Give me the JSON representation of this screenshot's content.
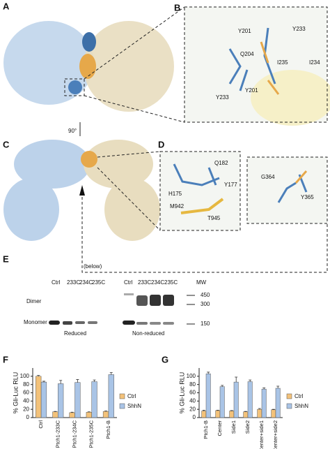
{
  "panels": {
    "A": {
      "label": "A"
    },
    "B": {
      "label": "B",
      "residues": [
        "Y201",
        "Y233",
        "Q204",
        "I235",
        "I234",
        "Y201",
        "Y233"
      ]
    },
    "C": {
      "label": "C",
      "rotation": "90°",
      "note": "(below)"
    },
    "D": {
      "label": "D",
      "residues": [
        "Q182",
        "H175",
        "Y177",
        "M942",
        "T945"
      ],
      "side_residues": [
        "G364",
        "Y365"
      ]
    },
    "E": {
      "label": "E",
      "lanes_reduced": [
        "Ctrl",
        "233C",
        "234C",
        "235C"
      ],
      "lanes_nonreduced": [
        "Ctrl",
        "233C",
        "234C",
        "235C"
      ],
      "mw_title": "MW",
      "mw": [
        450,
        300,
        150
      ],
      "dimer": "Dimer",
      "monomer": "Monomer",
      "reduced": "Reduced",
      "nonreduced": "Non-reduced"
    },
    "F": {
      "label": "F"
    },
    "G": {
      "label": "G"
    }
  },
  "chart_data": [
    {
      "type": "bar",
      "y_label": "% Gli-Luc RLU",
      "categories": [
        "Ctrl",
        "Ptch1-233C",
        "Ptch1-234C",
        "Ptch1-235C",
        "Ptch1-B"
      ],
      "series": [
        {
          "name": "Ctrl",
          "color": "#f3c27a",
          "values": [
            100,
            14,
            12,
            13,
            15
          ],
          "errors": [
            2,
            1,
            1,
            1,
            1
          ]
        },
        {
          "name": "ShhN",
          "color": "#a9c4e6",
          "values": [
            86,
            82,
            85,
            87,
            104
          ],
          "errors": [
            2,
            8,
            7,
            4,
            5
          ]
        }
      ],
      "ylim": [
        0,
        120
      ],
      "yticks": [
        0,
        20,
        40,
        60,
        80,
        100
      ]
    },
    {
      "type": "bar",
      "y_label": "% Gli-Luc RLU",
      "categories": [
        "Ptch1-B",
        "Center",
        "Side1",
        "Side2",
        "Center+side1",
        "Center+side2"
      ],
      "series": [
        {
          "name": "Ctrl",
          "color": "#f3c27a",
          "values": [
            16,
            17,
            16,
            14,
            20,
            19
          ],
          "errors": [
            2,
            1,
            1,
            1,
            2,
            1
          ]
        },
        {
          "name": "ShhN",
          "color": "#a9c4e6",
          "values": [
            106,
            75,
            86,
            87,
            69,
            71
          ],
          "errors": [
            4,
            3,
            12,
            4,
            3,
            5
          ]
        }
      ],
      "ylim": [
        0,
        120
      ],
      "yticks": [
        0,
        20,
        40,
        60,
        80,
        100
      ]
    }
  ]
}
